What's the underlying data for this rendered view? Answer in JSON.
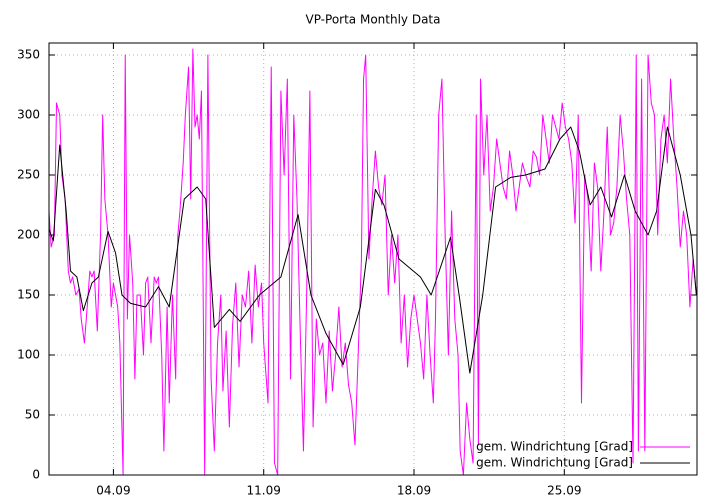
{
  "chart_data": {
    "type": "line",
    "title": "VP-Porta Monthly Data",
    "xlim": [
      1,
      31.18
    ],
    "xticks": [
      {
        "value": 4,
        "label": "04.09"
      },
      {
        "value": 11,
        "label": "11.09"
      },
      {
        "value": 18,
        "label": "18.09"
      },
      {
        "value": 25,
        "label": "25.09"
      }
    ],
    "ylim": [
      0,
      360
    ],
    "yticks": [
      0,
      50,
      100,
      150,
      200,
      250,
      300,
      350
    ],
    "grid": true,
    "legend": "bottom-right",
    "series": [
      {
        "name": "gem. Windrichtung [Grad]",
        "color": "#ff00ff",
        "x": [
          1.0,
          1.1,
          1.25,
          1.35,
          1.5,
          1.6,
          1.75,
          1.9,
          2.0,
          2.1,
          2.25,
          2.4,
          2.5,
          2.65,
          2.8,
          2.9,
          3.0,
          3.1,
          3.25,
          3.4,
          3.5,
          3.6,
          3.75,
          3.9,
          4.0,
          4.1,
          4.2,
          4.3,
          4.45,
          4.55,
          4.65,
          4.75,
          4.9,
          5.0,
          5.1,
          5.25,
          5.4,
          5.5,
          5.6,
          5.75,
          5.9,
          6.0,
          6.1,
          6.25,
          6.35,
          6.5,
          6.6,
          6.75,
          6.9,
          7.0,
          7.1,
          7.25,
          7.35,
          7.5,
          7.6,
          7.7,
          7.8,
          7.9,
          8.0,
          8.1,
          8.25,
          8.4,
          8.55,
          8.7,
          8.85,
          9.0,
          9.1,
          9.25,
          9.4,
          9.55,
          9.7,
          9.85,
          10.0,
          10.15,
          10.3,
          10.45,
          10.6,
          10.75,
          10.9,
          11.0,
          11.2,
          11.35,
          11.5,
          11.65,
          11.8,
          11.95,
          12.1,
          12.25,
          12.4,
          12.55,
          12.7,
          12.85,
          13.0,
          13.15,
          13.3,
          13.45,
          13.6,
          13.75,
          13.9,
          14.05,
          14.2,
          14.35,
          14.5,
          14.65,
          14.8,
          14.95,
          15.1,
          15.25,
          15.4,
          15.55,
          15.65,
          15.75,
          15.9,
          16.05,
          16.2,
          16.35,
          16.5,
          16.65,
          16.8,
          16.95,
          17.1,
          17.25,
          17.4,
          17.55,
          17.7,
          17.85,
          18.0,
          18.15,
          18.3,
          18.45,
          18.6,
          18.75,
          18.9,
          19.0,
          19.15,
          19.3,
          19.45,
          19.6,
          19.75,
          19.9,
          20.05,
          20.15,
          20.3,
          20.45,
          20.6,
          20.75,
          20.9,
          21.0,
          21.1,
          21.25,
          21.4,
          21.55,
          21.7,
          21.85,
          22.0,
          22.15,
          22.3,
          22.45,
          22.6,
          22.75,
          22.9,
          23.05,
          23.2,
          23.4,
          23.55,
          23.7,
          23.85,
          24.0,
          24.15,
          24.3,
          24.45,
          24.6,
          24.75,
          24.9,
          25.05,
          25.2,
          25.35,
          25.5,
          25.65,
          25.8,
          25.95,
          26.1,
          26.25,
          26.4,
          26.55,
          26.7,
          26.85,
          27.0,
          27.15,
          27.3,
          27.45,
          27.6,
          27.75,
          27.9,
          28.05,
          28.2,
          28.35,
          28.45,
          28.6,
          28.75,
          28.9,
          29.05,
          29.2,
          29.35,
          29.5,
          29.65,
          29.8,
          29.95,
          30.1,
          30.25,
          30.4,
          30.55,
          30.7,
          30.85,
          31.0,
          31.15
        ],
        "values": [
          220,
          190,
          200,
          310,
          300,
          250,
          230,
          170,
          160,
          165,
          150,
          155,
          130,
          110,
          145,
          170,
          165,
          170,
          120,
          200,
          300,
          230,
          200,
          140,
          160,
          150,
          140,
          110,
          0,
          350,
          130,
          200,
          160,
          80,
          150,
          150,
          100,
          160,
          165,
          110,
          165,
          160,
          165,
          100,
          20,
          140,
          60,
          150,
          80,
          200,
          220,
          260,
          300,
          340,
          230,
          355,
          290,
          300,
          280,
          320,
          0,
          350,
          80,
          20,
          110,
          150,
          70,
          120,
          40,
          125,
          160,
          90,
          150,
          140,
          170,
          110,
          175,
          140,
          160,
          110,
          60,
          340,
          10,
          0,
          320,
          250,
          330,
          80,
          300,
          230,
          120,
          20,
          150,
          320,
          40,
          130,
          100,
          110,
          60,
          120,
          70,
          100,
          140,
          90,
          110,
          75,
          60,
          25,
          100,
          180,
          330,
          350,
          180,
          230,
          270,
          240,
          225,
          250,
          150,
          200,
          160,
          200,
          110,
          150,
          90,
          130,
          150,
          130,
          110,
          80,
          150,
          100,
          60,
          130,
          300,
          330,
          200,
          100,
          220,
          130,
          100,
          20,
          0,
          60,
          30,
          10,
          300,
          25,
          330,
          250,
          300,
          220,
          240,
          280,
          260,
          240,
          230,
          270,
          250,
          220,
          240,
          260,
          250,
          240,
          270,
          265,
          250,
          300,
          280,
          260,
          300,
          290,
          280,
          310,
          290,
          280,
          260,
          210,
          300,
          60,
          250,
          230,
          170,
          260,
          240,
          170,
          220,
          290,
          200,
          210,
          240,
          300,
          270,
          230,
          200,
          10,
          350,
          20,
          330,
          20,
          350,
          310,
          300,
          200,
          280,
          300,
          260,
          330,
          280,
          240,
          190,
          220,
          200,
          140,
          180,
          150
        ]
      },
      {
        "name": "gem. Windrichtung [Grad]",
        "color": "#000000",
        "x": [
          1.0,
          1.2,
          1.5,
          1.8,
          2.0,
          2.3,
          2.6,
          3.0,
          3.3,
          3.75,
          4.1,
          4.4,
          4.8,
          5.5,
          6.1,
          6.6,
          7.3,
          7.9,
          8.3,
          8.7,
          9.4,
          9.9,
          10.8,
          11.8,
          12.6,
          13.2,
          13.9,
          14.7,
          15.5,
          16.2,
          16.6,
          17.3,
          18.3,
          18.8,
          19.7,
          20.1,
          20.6,
          21.2,
          21.8,
          22.5,
          23.2,
          24.1,
          24.8,
          25.3,
          25.7,
          26.2,
          26.7,
          27.2,
          27.8,
          28.3,
          28.9,
          29.3,
          29.8,
          30.4,
          30.9,
          31.15
        ],
        "values": [
          205,
          195,
          275,
          220,
          170,
          165,
          137,
          160,
          165,
          203,
          185,
          150,
          143,
          140,
          157,
          140,
          230,
          240,
          230,
          123,
          138,
          128,
          150,
          165,
          217,
          150,
          118,
          92,
          140,
          238,
          225,
          180,
          165,
          150,
          198,
          150,
          85,
          150,
          240,
          248,
          250,
          255,
          280,
          290,
          270,
          225,
          240,
          215,
          250,
          220,
          200,
          220,
          290,
          250,
          200,
          150
        ]
      }
    ]
  }
}
